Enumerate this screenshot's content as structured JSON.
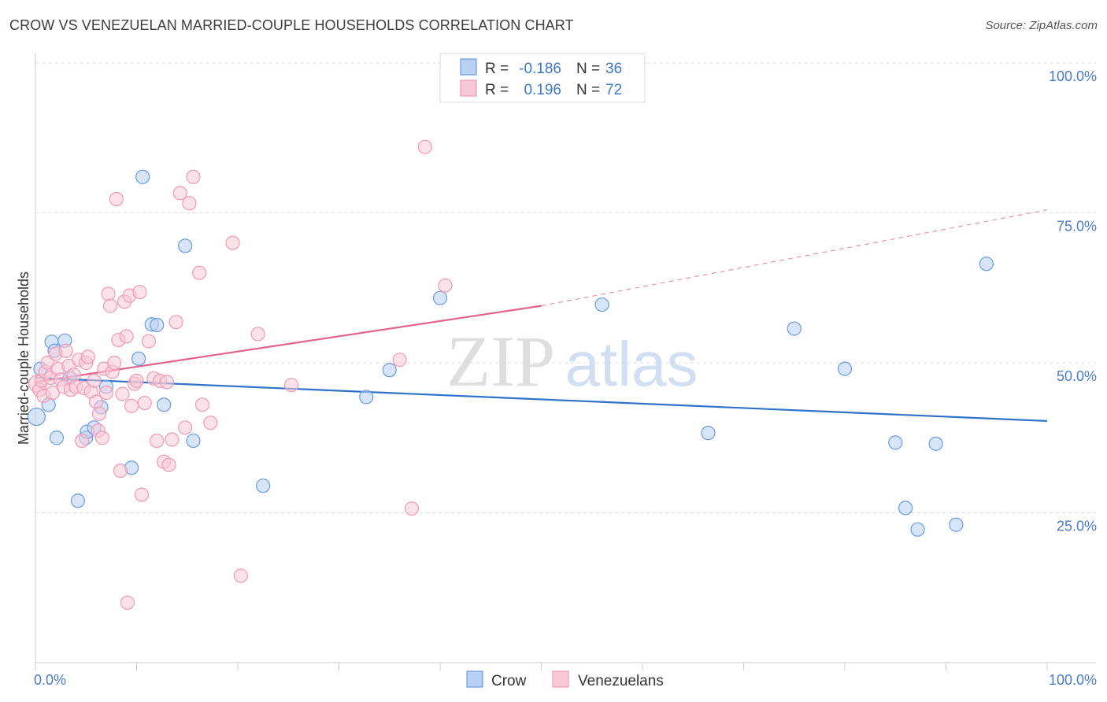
{
  "title": "CROW VS VENEZUELAN MARRIED-COUPLE HOUSEHOLDS CORRELATION CHART",
  "source": "Source: ZipAtlas.com",
  "chart_data": {
    "type": "scatter",
    "xlabel": "",
    "ylabel": "Married-couple Households",
    "xlim": [
      0,
      100
    ],
    "ylim": [
      0,
      100
    ],
    "x_tick_labels": [
      "0.0%",
      "100.0%"
    ],
    "y_ticks": [
      {
        "value": 25,
        "label": "25.0%"
      },
      {
        "value": 50,
        "label": "50.0%"
      },
      {
        "value": 75,
        "label": "75.0%"
      },
      {
        "value": 100,
        "label": "100.0%"
      }
    ],
    "grid": true,
    "legend_position": "top-center",
    "watermark": "ZIPatlas",
    "series": [
      {
        "name": "Crow",
        "color": "#6a9be0",
        "fill": "#b8d0f2",
        "line_color": "#2f72c9",
        "R_label": "R =",
        "R": "-0.186",
        "N_label": "N =",
        "N": "36",
        "trend": {
          "x": [
            0,
            100
          ],
          "y": [
            47.5,
            40.3
          ]
        },
        "points": [
          [
            0.1,
            41.0
          ],
          [
            0.5,
            49.0
          ],
          [
            1.3,
            43.0
          ],
          [
            1.6,
            53.5
          ],
          [
            1.9,
            52.0
          ],
          [
            2.1,
            37.5
          ],
          [
            2.9,
            53.7
          ],
          [
            3.4,
            47.5
          ],
          [
            4.2,
            27.0
          ],
          [
            5.0,
            37.5
          ],
          [
            5.1,
            38.5
          ],
          [
            5.8,
            39.2
          ],
          [
            6.5,
            42.6
          ],
          [
            7.0,
            46.0
          ],
          [
            9.5,
            32.5
          ],
          [
            10.2,
            50.7
          ],
          [
            10.6,
            81.0
          ],
          [
            11.5,
            56.4
          ],
          [
            12.0,
            56.3
          ],
          [
            12.7,
            43.0
          ],
          [
            14.8,
            69.5
          ],
          [
            15.6,
            37.0
          ],
          [
            22.5,
            29.5
          ],
          [
            32.7,
            44.3
          ],
          [
            35.0,
            48.8
          ],
          [
            40.0,
            60.8
          ],
          [
            56.0,
            59.7
          ],
          [
            66.5,
            38.3
          ],
          [
            75.0,
            55.7
          ],
          [
            80.0,
            49.0
          ],
          [
            85.0,
            36.7
          ],
          [
            86.0,
            25.8
          ],
          [
            87.2,
            22.2
          ],
          [
            89.0,
            36.5
          ],
          [
            91.0,
            23.0
          ],
          [
            94.0,
            66.5
          ]
        ]
      },
      {
        "name": "Venezuelans",
        "color": "#f09ab4",
        "fill": "#f8c8d6",
        "line_color": "#e2648c",
        "R_label": "R =",
        "R": "0.196",
        "N_label": "N =",
        "N": "72",
        "trend": {
          "x": [
            0,
            50
          ],
          "y": [
            46.8,
            59.5
          ]
        },
        "trend_ext": {
          "x": [
            50,
            100
          ],
          "y": [
            59.5,
            75.5
          ]
        },
        "points": [
          [
            0.2,
            46.5
          ],
          [
            0.4,
            45.5
          ],
          [
            0.6,
            47.0
          ],
          [
            0.8,
            44.5
          ],
          [
            1.0,
            48.5
          ],
          [
            1.2,
            50.0
          ],
          [
            1.5,
            47.5
          ],
          [
            1.7,
            45.0
          ],
          [
            2.0,
            51.5
          ],
          [
            2.2,
            49.0
          ],
          [
            2.5,
            47.2
          ],
          [
            2.8,
            46.0
          ],
          [
            3.0,
            52.0
          ],
          [
            3.3,
            49.5
          ],
          [
            3.5,
            45.5
          ],
          [
            3.8,
            48.0
          ],
          [
            4.0,
            46.0
          ],
          [
            4.3,
            50.5
          ],
          [
            4.6,
            37.0
          ],
          [
            4.8,
            45.8
          ],
          [
            5.0,
            50.0
          ],
          [
            5.2,
            51.0
          ],
          [
            5.5,
            45.2
          ],
          [
            5.8,
            47.0
          ],
          [
            6.0,
            43.5
          ],
          [
            6.2,
            38.7
          ],
          [
            6.3,
            41.5
          ],
          [
            6.6,
            37.5
          ],
          [
            6.8,
            49.0
          ],
          [
            7.0,
            45.0
          ],
          [
            7.2,
            61.5
          ],
          [
            7.4,
            59.5
          ],
          [
            7.6,
            48.5
          ],
          [
            7.8,
            50.0
          ],
          [
            8.0,
            77.3
          ],
          [
            8.2,
            53.8
          ],
          [
            8.4,
            32.0
          ],
          [
            8.6,
            44.8
          ],
          [
            8.8,
            60.2
          ],
          [
            9.0,
            54.4
          ],
          [
            9.1,
            10.0
          ],
          [
            9.3,
            61.2
          ],
          [
            9.5,
            42.8
          ],
          [
            9.8,
            46.5
          ],
          [
            10.0,
            47.0
          ],
          [
            10.3,
            61.8
          ],
          [
            10.5,
            28.0
          ],
          [
            10.8,
            43.3
          ],
          [
            11.2,
            53.6
          ],
          [
            11.7,
            47.4
          ],
          [
            12.0,
            37.0
          ],
          [
            12.3,
            47.0
          ],
          [
            12.7,
            33.5
          ],
          [
            13.0,
            46.8
          ],
          [
            13.2,
            33.0
          ],
          [
            13.5,
            37.2
          ],
          [
            13.9,
            56.8
          ],
          [
            14.3,
            78.3
          ],
          [
            14.8,
            39.2
          ],
          [
            15.2,
            76.6
          ],
          [
            15.6,
            81.0
          ],
          [
            16.2,
            65.0
          ],
          [
            16.5,
            43.0
          ],
          [
            17.3,
            40.0
          ],
          [
            19.5,
            70.0
          ],
          [
            20.3,
            14.5
          ],
          [
            22.0,
            54.8
          ],
          [
            25.3,
            46.3
          ],
          [
            36.0,
            50.5
          ],
          [
            37.2,
            25.7
          ],
          [
            38.5,
            86.0
          ],
          [
            40.5,
            62.9
          ]
        ]
      }
    ]
  }
}
